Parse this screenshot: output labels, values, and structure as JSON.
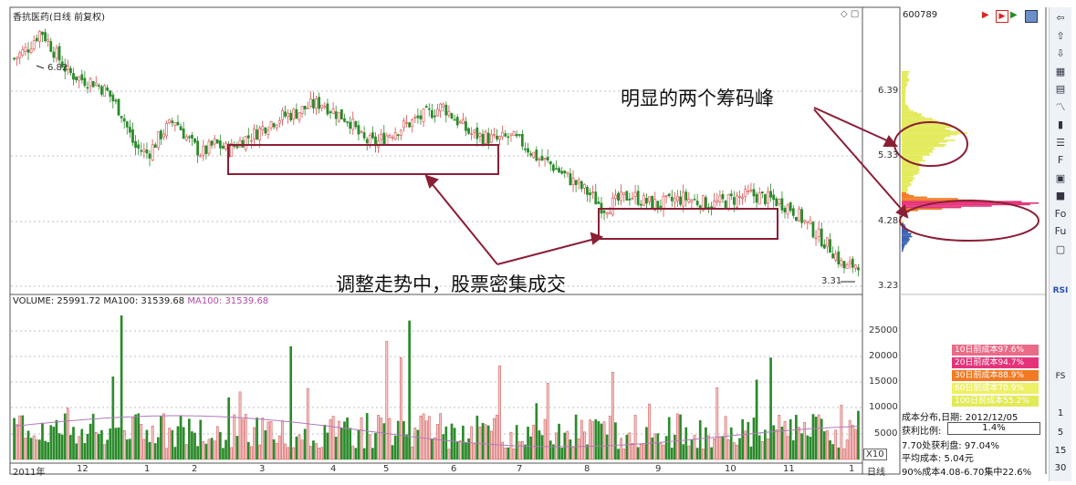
{
  "window": {
    "title": "香抗医药(日线 前复权)",
    "code": "600789"
  },
  "main_chart": {
    "price_axis": [
      "6.39",
      "5.33",
      "4.28",
      "3.23"
    ],
    "high_label": "6.82",
    "low_label": "3.31",
    "corner_icons": "◇ ▢"
  },
  "volume_chart": {
    "header_volume": "VOLUME: 25991.72",
    "header_ma100a": "MA100: 31539.68",
    "header_ma100b": "MA100: 31539.68",
    "axis": [
      "25000",
      "20000",
      "15000",
      "10000",
      "5000"
    ],
    "scale_badge": "X10"
  },
  "x_axis": {
    "labels": [
      "2011年",
      "12",
      "1",
      "2",
      "3",
      "4",
      "5",
      "6",
      "7",
      "8",
      "9",
      "10",
      "11",
      "1"
    ],
    "period": "日线"
  },
  "annotations": {
    "peaks": "明显的两个筹码峰",
    "dense": "调整走势中，股票密集成交"
  },
  "cost_legend": [
    {
      "label": "10日前成本97.6%",
      "color": "#e96b86"
    },
    {
      "label": "20日前成本94.7%",
      "color": "#e5337a"
    },
    {
      "label": "30日前成本88.9%",
      "color": "#f27a22"
    },
    {
      "label": "60日前成本70.9%",
      "color": "#eef066"
    },
    {
      "label": "100日前成本55.2%",
      "color": "#e3ea58"
    }
  ],
  "cost_info": {
    "date_line": "成本分布,日期: 2012/12/05",
    "profit_label": "获利比例:",
    "profit_value": "1.4%",
    "line3": "7.70处获利盘: 97.04%",
    "line4": "平均成本: 5.04元",
    "line5": "90%成本4.08-6.70集中22.6%"
  },
  "toolbar": {
    "icons": [
      "arrow-left-icon",
      "arrow-up-icon",
      "arrow-down-icon",
      "chart-icon",
      "grid-icon",
      "line-icon",
      "candle-icon",
      "list-icon",
      "f10-icon",
      "doc-icon",
      "mark-icon",
      "fo-icon",
      "fund-icon",
      "calc-icon"
    ],
    "rsi": "RSI",
    "fs": "FS",
    "periods": [
      "1",
      "5",
      "15",
      "30"
    ]
  },
  "chart_data": {
    "type": "candlestick",
    "x_labels": [
      "2011年",
      "12",
      "1",
      "2",
      "3",
      "4",
      "5",
      "6",
      "7",
      "8",
      "9",
      "10",
      "11",
      "1"
    ],
    "price_ticks": [
      6.39,
      5.33,
      4.28,
      3.23
    ],
    "price_range": [
      3.0,
      7.1
    ],
    "price_path": [
      6.4,
      6.55,
      6.82,
      6.5,
      6.2,
      6.1,
      6.05,
      5.9,
      5.6,
      5.1,
      5.0,
      5.3,
      5.5,
      5.2,
      5.0,
      5.15,
      5.05,
      5.2,
      5.3,
      5.45,
      5.55,
      5.6,
      5.7,
      5.75,
      5.6,
      5.5,
      5.2,
      5.15,
      5.3,
      5.4,
      5.5,
      5.6,
      5.7,
      5.5,
      5.3,
      5.25,
      5.2,
      5.25,
      5.15,
      4.95,
      4.85,
      4.7,
      4.55,
      4.4,
      4.2,
      4.3,
      4.4,
      4.3,
      4.25,
      4.3,
      4.35,
      4.3,
      4.25,
      4.3,
      4.35,
      4.4,
      4.35,
      4.3,
      4.2,
      4.0,
      3.8,
      3.6,
      3.31,
      3.4
    ],
    "volume_ticks": [
      25000,
      20000,
      15000,
      10000,
      5000
    ],
    "volume_range": [
      0,
      30000
    ],
    "ma100": 31539.68,
    "latest_volume": 25991.72,
    "cost_peaks": [
      {
        "price": 5.33,
        "relative": 0.55
      },
      {
        "price": 4.28,
        "relative": 1.0
      }
    ]
  }
}
